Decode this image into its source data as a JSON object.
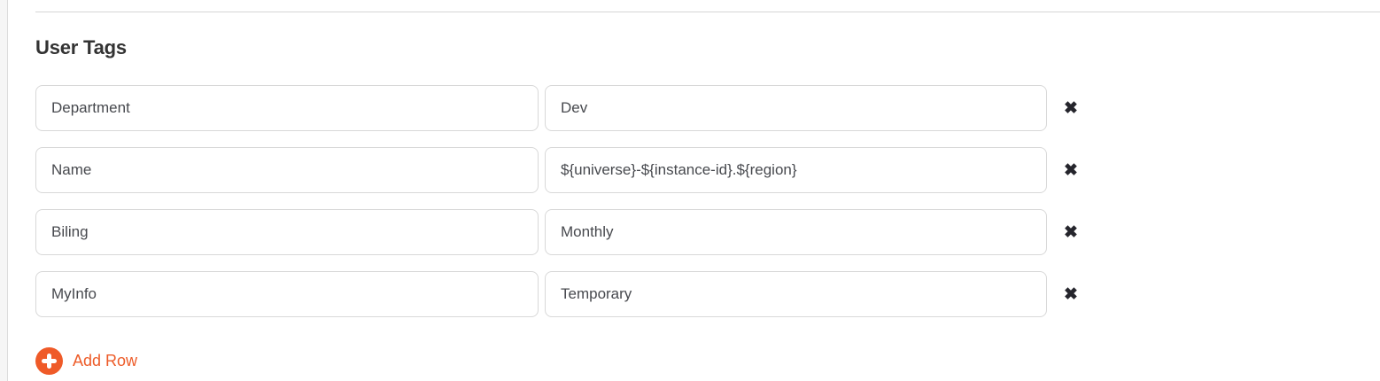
{
  "section": {
    "title": "User Tags"
  },
  "rows": [
    {
      "key": "Department",
      "value": "Dev"
    },
    {
      "key": "Name",
      "value": "${universe}-${instance-id}.${region}"
    },
    {
      "key": "Biling",
      "value": "Monthly"
    },
    {
      "key": "MyInfo",
      "value": "Temporary"
    }
  ],
  "icons": {
    "remove_glyph": "✖"
  },
  "add_row": {
    "label": "Add Row"
  },
  "colors": {
    "accent_orange": "#ef5a28",
    "input_border": "#d8d8d8",
    "divider": "#d6d6d6",
    "remove_icon": "#25252c",
    "heading_text": "#333333",
    "input_text": "#47494e"
  }
}
